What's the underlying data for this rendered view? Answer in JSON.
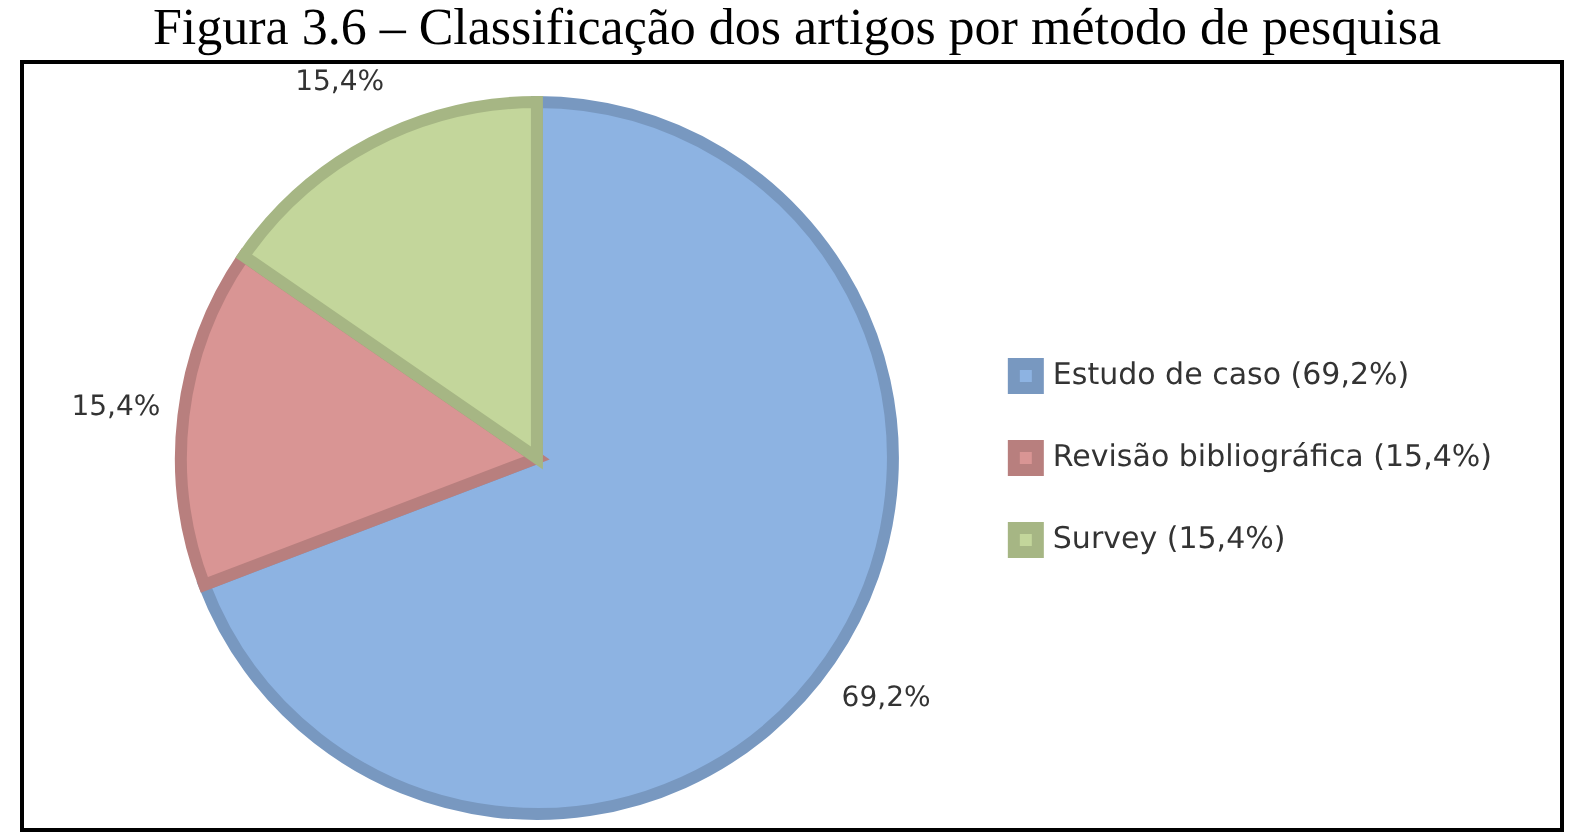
{
  "chart_data": {
    "type": "pie",
    "title": "Figura 3.6 – Classificação dos artigos por método de pesquisa",
    "categories": [
      "Estudo de caso (69,2%)",
      "Revisão bibliográfica (15,4%)",
      "Survey (15,4%)"
    ],
    "values": [
      69.2,
      15.4,
      15.4
    ],
    "colors": [
      "#8db3e2",
      "#d99594",
      "#c3d69b"
    ],
    "value_labels": [
      "69,2%",
      "15,4%",
      "15,4%"
    ],
    "legend": "right"
  }
}
